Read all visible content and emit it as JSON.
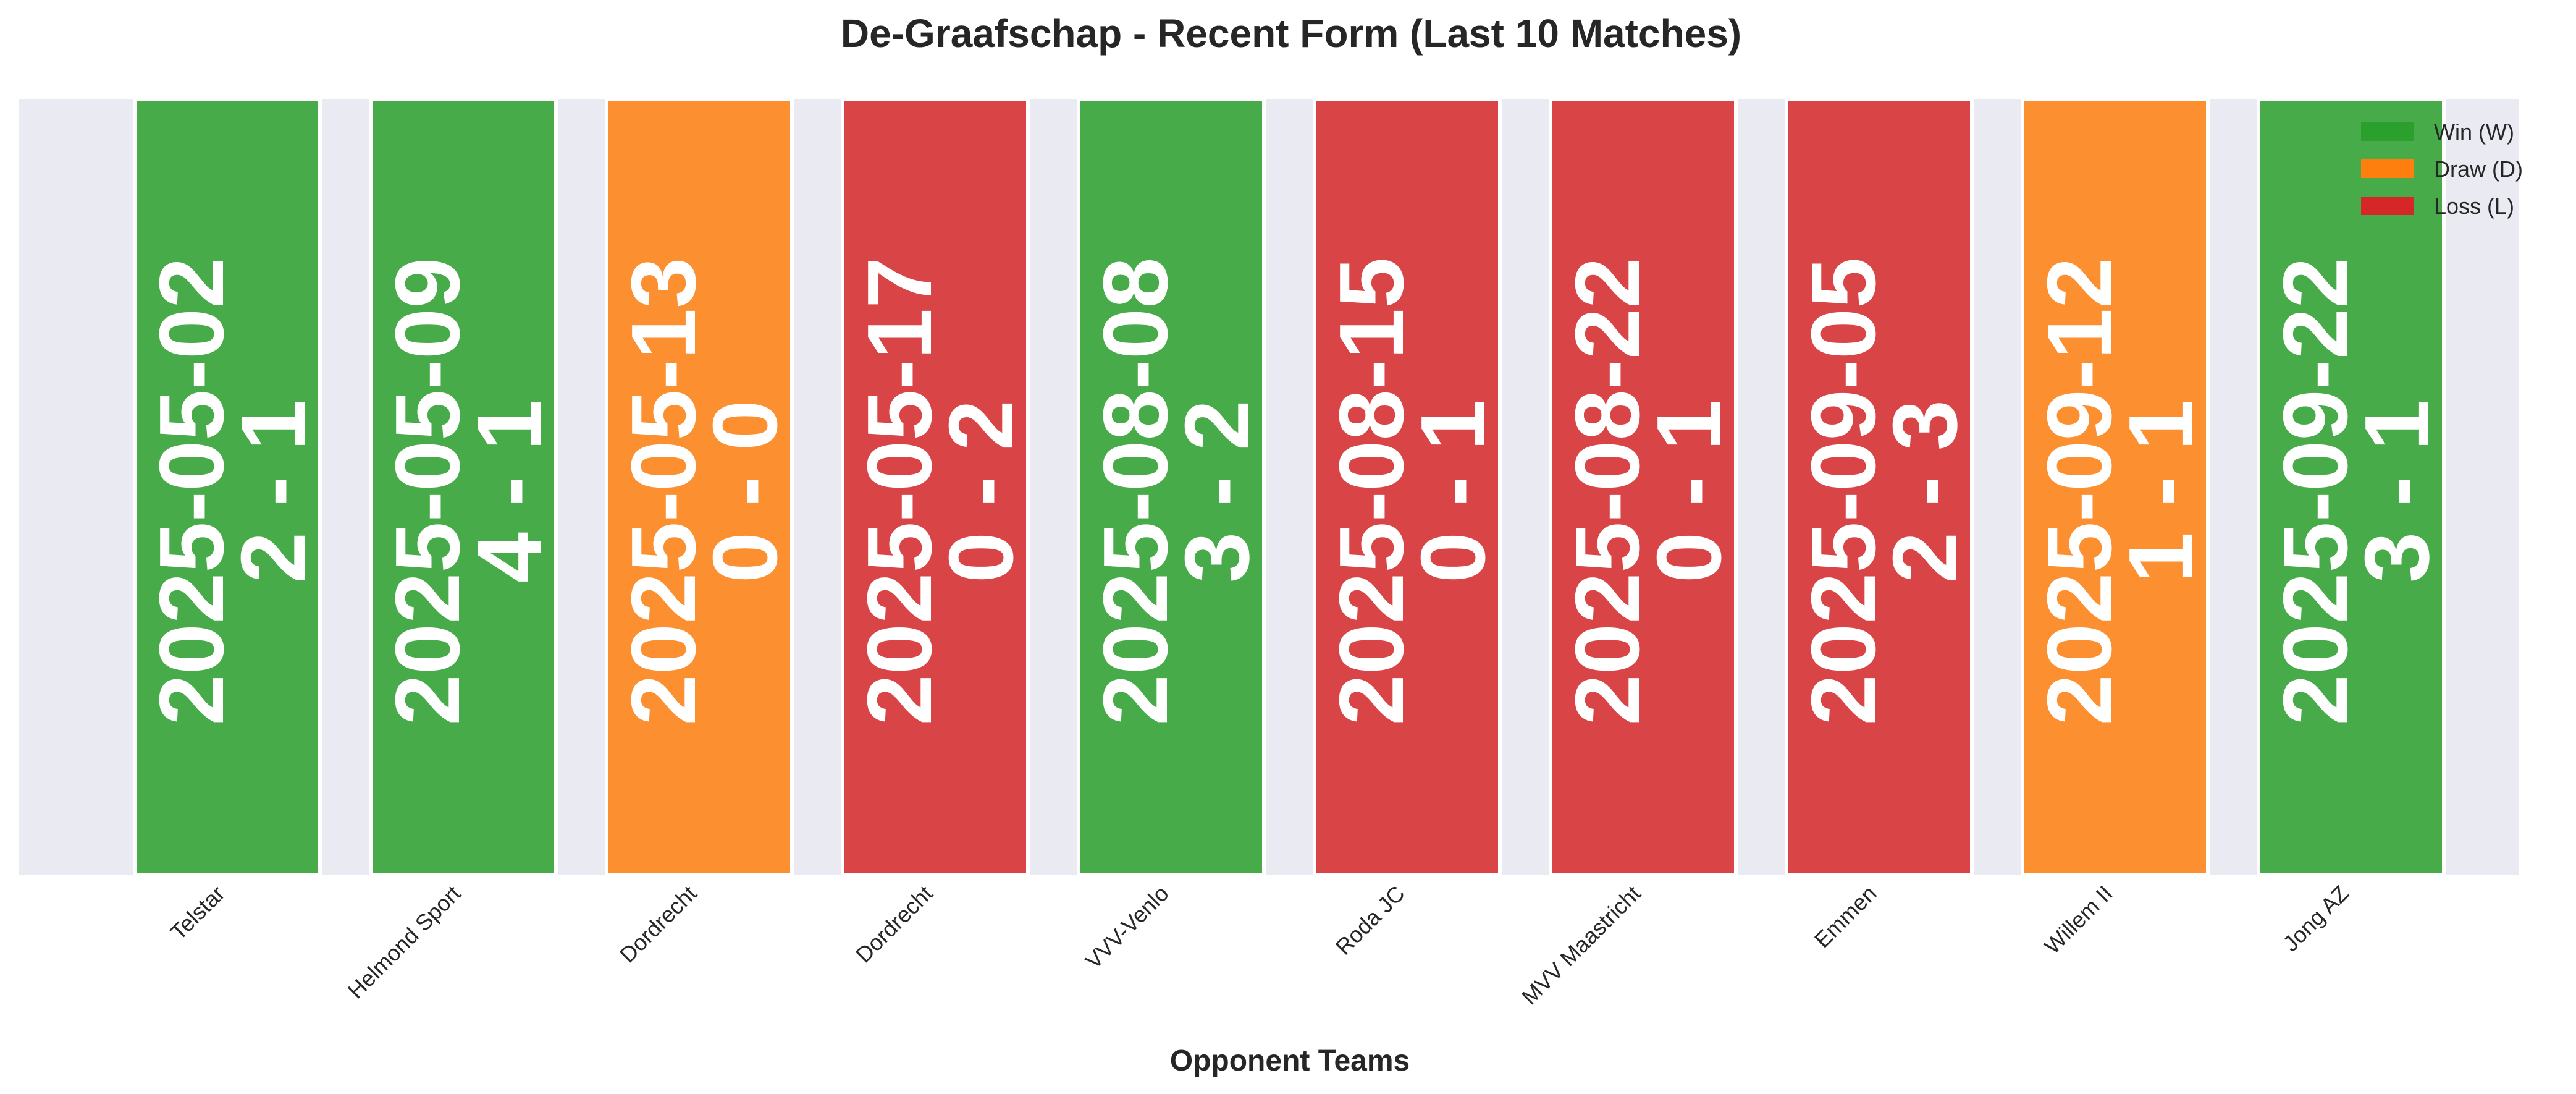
{
  "chart_data": {
    "type": "bar",
    "title": "De-Graafschap - Recent Form (Last 10 Matches)",
    "xlabel": "Opponent Teams",
    "ylabel": "",
    "ylim": [
      0,
      1
    ],
    "grid": false,
    "legend_position": "top-right",
    "categories": [
      "Telstar",
      "Helmond Sport",
      "Dordrecht",
      "Dordrecht",
      "VVV-Venlo",
      "Roda JC",
      "MVV Maastricht",
      "Emmen",
      "Willem II",
      "Jong AZ"
    ],
    "values": [
      1,
      1,
      1,
      1,
      1,
      1,
      1,
      1,
      1,
      1
    ],
    "results": [
      "W",
      "W",
      "D",
      "L",
      "W",
      "L",
      "L",
      "L",
      "D",
      "W"
    ],
    "dates": [
      "2025-05-02",
      "2025-05-09",
      "2025-05-13",
      "2025-05-17",
      "2025-08-08",
      "2025-08-15",
      "2025-08-22",
      "2025-09-05",
      "2025-09-12",
      "2025-09-22"
    ],
    "scores": [
      "2 - 1",
      "4 - 1",
      "0 - 0",
      "0 - 2",
      "3 - 2",
      "0 - 1",
      "0 - 1",
      "2 - 3",
      "1 - 1",
      "3 - 1"
    ],
    "legend": [
      {
        "key": "W",
        "label": "Win (W)",
        "color": "#2ca02c"
      },
      {
        "key": "D",
        "label": "Draw (D)",
        "color": "#ff7f0e"
      },
      {
        "key": "L",
        "label": "Loss (L)",
        "color": "#d62728"
      }
    ],
    "colors": {
      "background": "#eaeaf2",
      "bar_edge": "#ffffff"
    }
  }
}
